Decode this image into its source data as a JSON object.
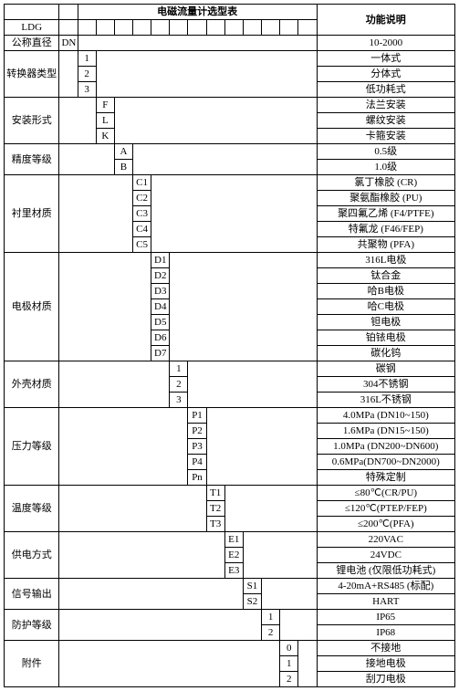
{
  "header": {
    "title": "电磁流量计选型表",
    "desc_header": "功能说明"
  },
  "rows": [
    {
      "label": "LDG",
      "tick": 0,
      "desc": ""
    },
    {
      "label": "公称直径",
      "code": "DN",
      "tick": 1,
      "desc": "10-2000"
    },
    {
      "label": "转换器类型",
      "span": 3,
      "items": [
        {
          "code": "1",
          "desc": "一体式"
        },
        {
          "code": "2",
          "desc": "分体式"
        },
        {
          "code": "3",
          "desc": "低功耗式"
        }
      ],
      "tick": 2
    },
    {
      "label": "安装形式",
      "span": 3,
      "items": [
        {
          "code": "F",
          "desc": "法兰安装"
        },
        {
          "code": "L",
          "desc": "螺纹安装"
        },
        {
          "code": "K",
          "desc": "卡箍安装"
        }
      ],
      "tick": 3
    },
    {
      "label": "精度等级",
      "span": 2,
      "items": [
        {
          "code": "A",
          "desc": "0.5级"
        },
        {
          "code": "B",
          "desc": "1.0级"
        }
      ],
      "tick": 4
    },
    {
      "label": "衬里材质",
      "span": 5,
      "items": [
        {
          "code": "C1",
          "desc": "氯丁橡胶 (CR)"
        },
        {
          "code": "C2",
          "desc": "聚氨酯橡胶 (PU)"
        },
        {
          "code": "C3",
          "desc": "聚四氟乙烯 (F4/PTFE)"
        },
        {
          "code": "C4",
          "desc": "特氟龙 (F46/FEP)"
        },
        {
          "code": "C5",
          "desc": "共聚物 (PFA)"
        }
      ],
      "tick": 5
    },
    {
      "label": "电极材质",
      "span": 7,
      "items": [
        {
          "code": "D1",
          "desc": "316L电极"
        },
        {
          "code": "D2",
          "desc": "钛合金"
        },
        {
          "code": "D3",
          "desc": "哈B电极"
        },
        {
          "code": "D4",
          "desc": "哈C电极"
        },
        {
          "code": "D5",
          "desc": "钽电极"
        },
        {
          "code": "D6",
          "desc": "铂铱电极"
        },
        {
          "code": "D7",
          "desc": "碳化钨"
        }
      ],
      "tick": 6
    },
    {
      "label": "外壳材质",
      "span": 3,
      "items": [
        {
          "code": "1",
          "desc": "碳钢"
        },
        {
          "code": "2",
          "desc": "304不锈钢"
        },
        {
          "code": "3",
          "desc": "316L不锈钢"
        }
      ],
      "tick": 7
    },
    {
      "label": "压力等级",
      "span": 5,
      "items": [
        {
          "code": "P1",
          "desc": "4.0MPa (DN10~150)"
        },
        {
          "code": "P2",
          "desc": "1.6MPa (DN15~150)"
        },
        {
          "code": "P3",
          "desc": "1.0MPa (DN200~DN600)"
        },
        {
          "code": "P4",
          "desc": "0.6MPa(DN700~DN2000)"
        },
        {
          "code": "Pn",
          "desc": "特殊定制"
        }
      ],
      "tick": 8
    },
    {
      "label": "温度等级",
      "span": 3,
      "items": [
        {
          "code": "T1",
          "desc": "≤80℃(CR/PU)"
        },
        {
          "code": "T2",
          "desc": "≤120℃(PTEP/FEP)"
        },
        {
          "code": "T3",
          "desc": "≤200℃(PFA)"
        }
      ],
      "tick": 9
    },
    {
      "label": "供电方式",
      "span": 3,
      "items": [
        {
          "code": "E1",
          "desc": "220VAC"
        },
        {
          "code": "E2",
          "desc": "24VDC"
        },
        {
          "code": "E3",
          "desc": "锂电池 (仅限低功耗式)"
        }
      ],
      "tick": 10
    },
    {
      "label": "信号输出",
      "span": 2,
      "items": [
        {
          "code": "S1",
          "desc": "4-20mA+RS485 (标配)"
        },
        {
          "code": "S2",
          "desc": "HART"
        }
      ],
      "tick": 11
    },
    {
      "label": "防护等级",
      "span": 2,
      "items": [
        {
          "code": "1",
          "desc": "IP65"
        },
        {
          "code": "2",
          "desc": "IP68"
        }
      ],
      "tick": 12
    },
    {
      "label": "附件",
      "span": 3,
      "items": [
        {
          "code": "0",
          "desc": "不接地"
        },
        {
          "code": "1",
          "desc": "接地电极"
        },
        {
          "code": "2",
          "desc": "刮刀电极"
        }
      ],
      "tick": 13
    }
  ],
  "style": {
    "label_col_width": 60,
    "tick_col_width": 20,
    "desc_col_width": 150,
    "num_tick_cols": 14
  }
}
